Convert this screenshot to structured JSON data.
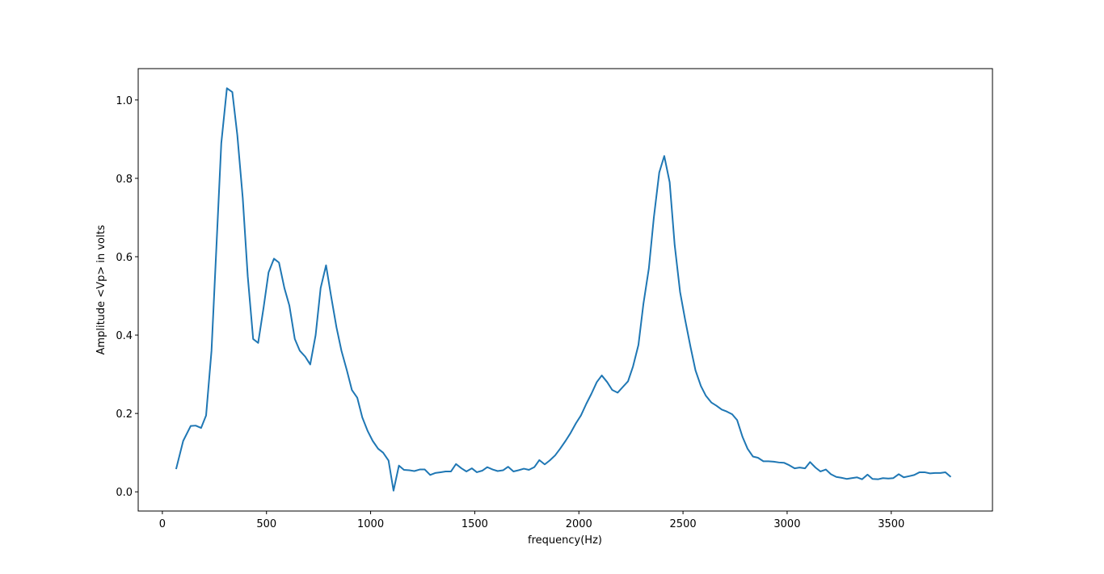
{
  "chart_data": {
    "type": "line",
    "xlabel": "frequency(Hz)",
    "ylabel": "Amplitude <Vp> in volts",
    "color": "#1f77b4",
    "xlim": [
      -116,
      3986
    ],
    "ylim": [
      -0.049,
      1.08
    ],
    "xticks": [
      0,
      500,
      1000,
      1500,
      2000,
      2500,
      3000,
      3500
    ],
    "yticks": [
      {
        "value": 0,
        "label": "0.0"
      },
      {
        "value": 0.2,
        "label": "0.2"
      },
      {
        "value": 0.4,
        "label": "0.4"
      },
      {
        "value": 0.6,
        "label": "0.6"
      },
      {
        "value": 0.8,
        "label": "0.8"
      },
      {
        "value": 1,
        "label": "1.0"
      }
    ],
    "x": [
      66,
      100,
      136,
      160,
      186,
      210,
      236,
      260,
      283,
      310,
      336,
      360,
      386,
      410,
      436,
      460,
      486,
      510,
      536,
      560,
      586,
      610,
      636,
      660,
      686,
      710,
      736,
      760,
      786,
      810,
      836,
      860,
      886,
      910,
      936,
      960,
      986,
      1010,
      1036,
      1060,
      1086,
      1110,
      1136,
      1160,
      1186,
      1210,
      1236,
      1260,
      1286,
      1310,
      1336,
      1360,
      1386,
      1410,
      1436,
      1460,
      1486,
      1510,
      1536,
      1560,
      1586,
      1610,
      1636,
      1660,
      1686,
      1710,
      1736,
      1760,
      1786,
      1810,
      1836,
      1860,
      1886,
      1910,
      1936,
      1960,
      1986,
      2010,
      2036,
      2060,
      2086,
      2110,
      2136,
      2160,
      2186,
      2210,
      2236,
      2260,
      2286,
      2310,
      2336,
      2360,
      2386,
      2410,
      2436,
      2460,
      2486,
      2510,
      2536,
      2560,
      2586,
      2610,
      2636,
      2660,
      2686,
      2710,
      2736,
      2760,
      2786,
      2810,
      2836,
      2860,
      2886,
      2910,
      2936,
      2960,
      2986,
      3010,
      3036,
      3060,
      3086,
      3110,
      3136,
      3160,
      3186,
      3210,
      3236,
      3260,
      3286,
      3310,
      3336,
      3360,
      3386,
      3410,
      3436,
      3460,
      3486,
      3510,
      3536,
      3560,
      3586,
      3610,
      3636,
      3660,
      3686,
      3710,
      3736,
      3760,
      3786
    ],
    "values": [
      0.058,
      0.13,
      0.168,
      0.169,
      0.163,
      0.195,
      0.36,
      0.63,
      0.89,
      1.03,
      1.02,
      0.91,
      0.75,
      0.55,
      0.39,
      0.38,
      0.47,
      0.56,
      0.595,
      0.585,
      0.52,
      0.475,
      0.39,
      0.36,
      0.345,
      0.325,
      0.4,
      0.52,
      0.578,
      0.5,
      0.42,
      0.36,
      0.31,
      0.26,
      0.24,
      0.19,
      0.155,
      0.13,
      0.11,
      0.1,
      0.08,
      0.003,
      0.067,
      0.056,
      0.055,
      0.053,
      0.057,
      0.057,
      0.043,
      0.048,
      0.05,
      0.052,
      0.052,
      0.071,
      0.06,
      0.052,
      0.06,
      0.05,
      0.054,
      0.063,
      0.057,
      0.053,
      0.055,
      0.064,
      0.052,
      0.055,
      0.059,
      0.056,
      0.063,
      0.081,
      0.07,
      0.08,
      0.093,
      0.11,
      0.13,
      0.15,
      0.175,
      0.195,
      0.225,
      0.25,
      0.28,
      0.297,
      0.28,
      0.26,
      0.253,
      0.267,
      0.282,
      0.32,
      0.375,
      0.48,
      0.57,
      0.7,
      0.815,
      0.857,
      0.79,
      0.63,
      0.51,
      0.44,
      0.37,
      0.31,
      0.27,
      0.245,
      0.228,
      0.22,
      0.21,
      0.205,
      0.198,
      0.183,
      0.14,
      0.11,
      0.09,
      0.087,
      0.078,
      0.078,
      0.077,
      0.075,
      0.074,
      0.068,
      0.06,
      0.062,
      0.06,
      0.076,
      0.062,
      0.052,
      0.057,
      0.045,
      0.038,
      0.036,
      0.033,
      0.035,
      0.037,
      0.032,
      0.044,
      0.033,
      0.032,
      0.035,
      0.034,
      0.035,
      0.045,
      0.037,
      0.04,
      0.043,
      0.05,
      0.05,
      0.047,
      0.048,
      0.048,
      0.05,
      0.038
    ]
  }
}
